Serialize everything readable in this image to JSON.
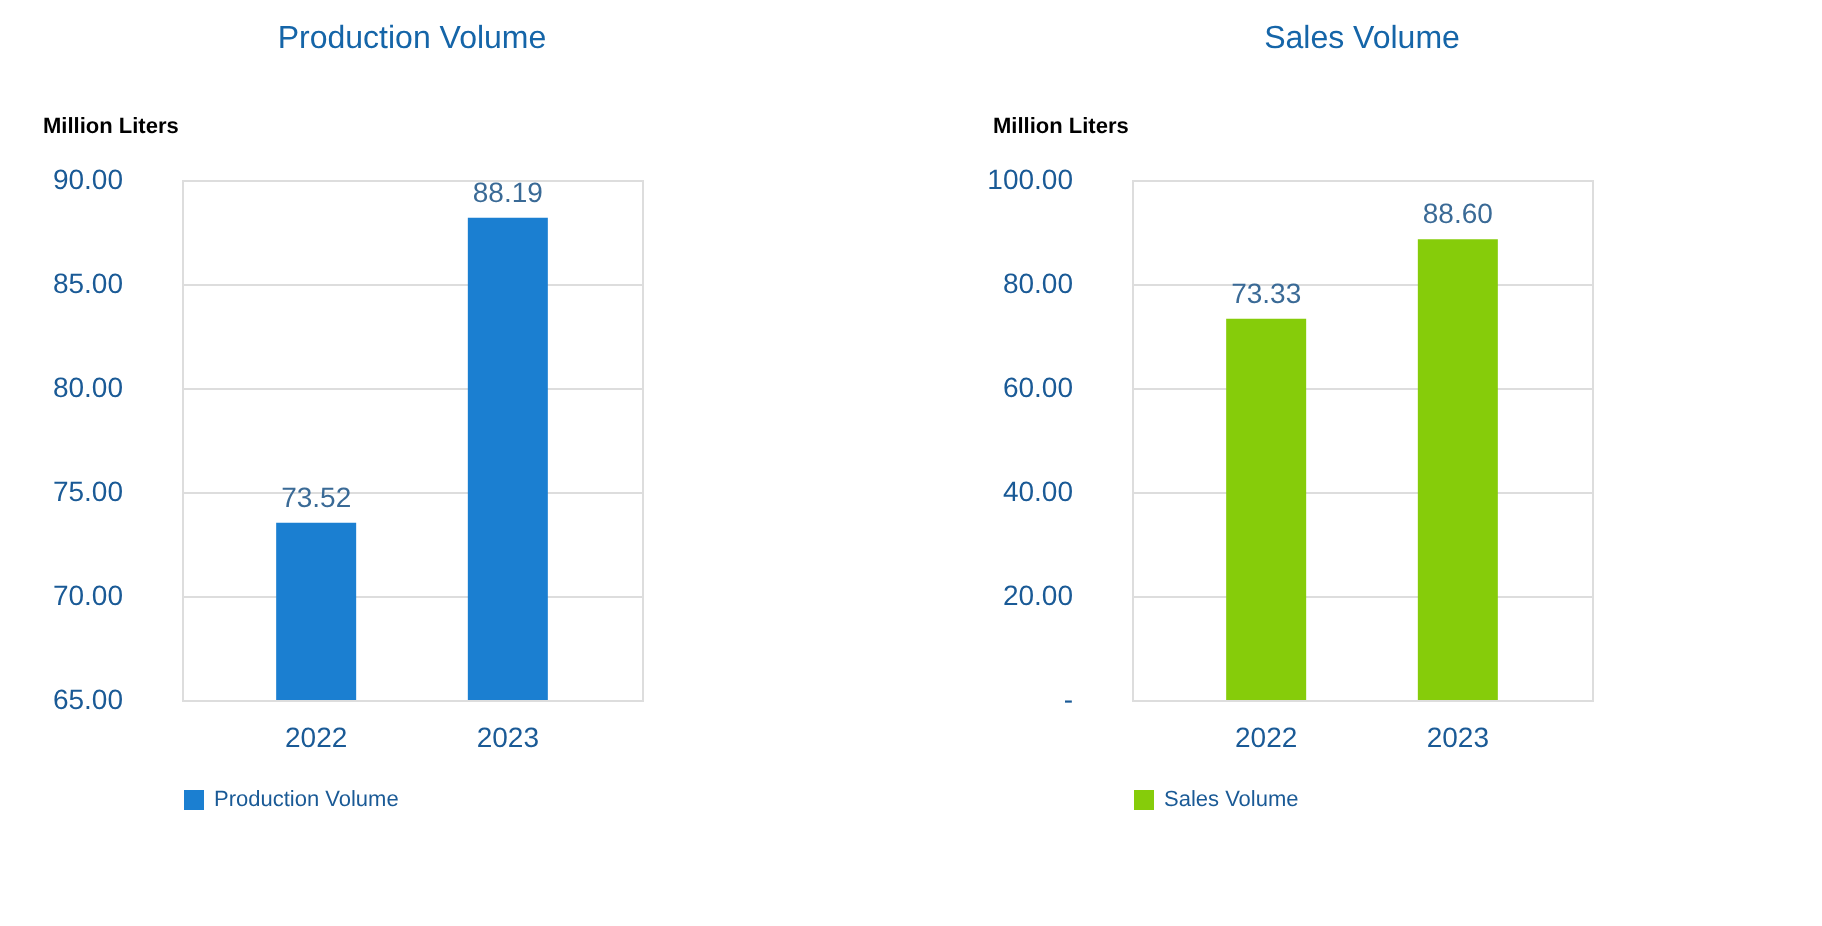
{
  "chart_data": [
    {
      "type": "bar",
      "title": "Production Volume",
      "ylabel": "Million Liters",
      "categories": [
        "2022",
        "2023"
      ],
      "series": [
        {
          "name": "Production Volume",
          "color": "#1b7fd1",
          "values": [
            73.52,
            88.19
          ],
          "value_labels": [
            "73.52",
            "88.19"
          ]
        }
      ],
      "ylim": [
        65,
        90
      ],
      "yticks": [
        {
          "value": 65,
          "label": "65.00"
        },
        {
          "value": 70,
          "label": "70.00"
        },
        {
          "value": 75,
          "label": "75.00"
        },
        {
          "value": 80,
          "label": "80.00"
        },
        {
          "value": 85,
          "label": "85.00"
        },
        {
          "value": 90,
          "label": "90.00"
        }
      ],
      "grid": "y",
      "legend": "bottom"
    },
    {
      "type": "bar",
      "title": "Sales Volume",
      "ylabel": "Million Liters",
      "categories": [
        "2022",
        "2023"
      ],
      "series": [
        {
          "name": "Sales Volume",
          "color": "#86cc0a",
          "values": [
            73.33,
            88.6
          ],
          "value_labels": [
            "73.33",
            "88.60"
          ]
        }
      ],
      "ylim": [
        0,
        100
      ],
      "yticks": [
        {
          "value": 0,
          "label": "-"
        },
        {
          "value": 20,
          "label": "20.00"
        },
        {
          "value": 40,
          "label": "40.00"
        },
        {
          "value": 60,
          "label": "60.00"
        },
        {
          "value": 80,
          "label": "80.00"
        },
        {
          "value": 100,
          "label": "100.00"
        }
      ],
      "grid": "y",
      "legend": "bottom"
    }
  ]
}
